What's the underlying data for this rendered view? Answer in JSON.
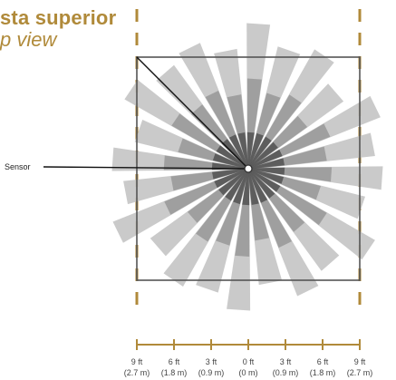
{
  "title": {
    "spanish": "sta superior",
    "english": "p view"
  },
  "sensor_label": "Sensor",
  "scale": {
    "ticks": [
      {
        "ft": "9 ft",
        "m": "(2.7 m)"
      },
      {
        "ft": "6 ft",
        "m": "(1.8 m)"
      },
      {
        "ft": "3 ft",
        "m": "(0.9 m)"
      },
      {
        "ft": "0 ft",
        "m": "(0 m)"
      },
      {
        "ft": "3 ft",
        "m": "(0.9 m)"
      },
      {
        "ft": "6 ft",
        "m": "(1.8 m)"
      },
      {
        "ft": "9 ft",
        "m": "(2.7 m)"
      }
    ]
  },
  "colors": {
    "title": "#b08a3a",
    "guide_dash": "#b08a3a",
    "ray_light": "#c4c4c4",
    "ray_mid": "#9a9a9a",
    "ray_dark": "#555555",
    "frame": "#555555"
  }
}
